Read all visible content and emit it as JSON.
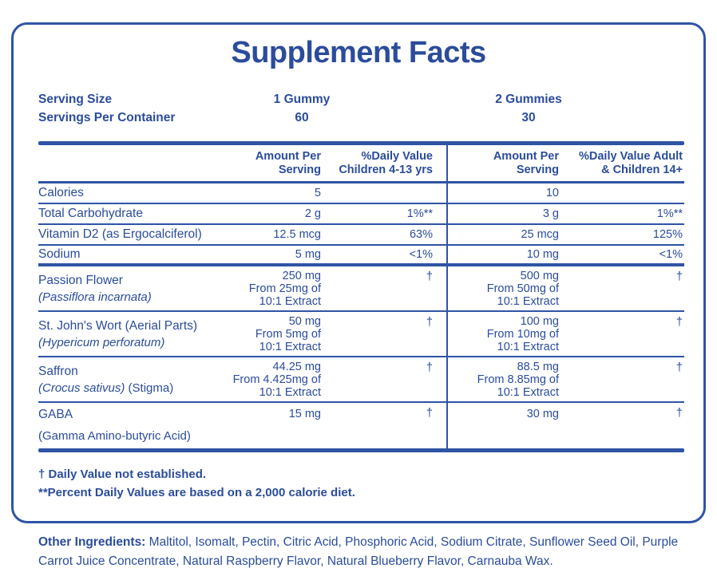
{
  "colors": {
    "brand": "#2F54A4",
    "text": "#2B4C9B"
  },
  "title": "Supplement Facts",
  "serving": {
    "size_label": "Serving Size",
    "container_label": "Servings Per Container",
    "col1": {
      "size": "1 Gummy",
      "servings": "60"
    },
    "col2": {
      "size": "2 Gummies",
      "servings": "30"
    }
  },
  "table": {
    "headers": {
      "amount1_l1": "Amount Per",
      "amount1_l2": "Serving",
      "dv1_l1": "%Daily Value",
      "dv1_l2": "Children 4-13 yrs",
      "amount2_l1": "Amount Per",
      "amount2_l2": "Serving",
      "dv2_l1": "%Daily Value Adult",
      "dv2_l2": "& Children 14+"
    },
    "rows": [
      {
        "name": "Calories",
        "amount1": [
          "5"
        ],
        "dv1": "",
        "amount2": [
          "10"
        ],
        "dv2": ""
      },
      {
        "name": "Total Carbohydrate",
        "amount1": [
          "2 g"
        ],
        "dv1": "1%**",
        "amount2": [
          "3 g"
        ],
        "dv2": "1%**"
      },
      {
        "name": "Vitamin D2 (as Ergocalciferol)",
        "amount1": [
          "12.5 mcg"
        ],
        "dv1": "63%",
        "amount2": [
          "25 mcg"
        ],
        "dv2": "125%"
      },
      {
        "name": "Sodium",
        "amount1": [
          "5 mg"
        ],
        "dv1": "<1%",
        "amount2": [
          "10 mg"
        ],
        "dv2": "<1%",
        "thick_after": true
      },
      {
        "name": "Passion Flower",
        "name2_italic": "(Passiflora incarnata)",
        "tall": true,
        "amount1": [
          "250 mg",
          "From 25mg of",
          "10:1 Extract"
        ],
        "dv1": "†",
        "amount2": [
          "500 mg",
          "From 50mg of",
          "10:1 Extract"
        ],
        "dv2": "†"
      },
      {
        "name": "St. John's Wort (Aerial Parts)",
        "name2_italic": "(Hypericum perforatum)",
        "tall": true,
        "amount1": [
          "50 mg",
          "From 5mg of",
          "10:1 Extract"
        ],
        "dv1": "†",
        "amount2": [
          "100 mg",
          "From 10mg of",
          "10:1 Extract"
        ],
        "dv2": "†"
      },
      {
        "name": "Saffron",
        "name2_italic": "(Crocus sativus)",
        "name2_normal": " (Stigma)",
        "tall": true,
        "amount1": [
          "44.25 mg",
          "From 4.425mg of",
          "10:1 Extract"
        ],
        "dv1": "†",
        "amount2": [
          "88.5 mg",
          "From 8.85mg of",
          "10:1 Extract"
        ],
        "dv2": "†"
      },
      {
        "name": "GABA",
        "name2_normal": "(Gamma Amino-butyric Acid)",
        "tall": true,
        "top": true,
        "name_gap": true,
        "amount1": [
          "15 mg"
        ],
        "dv1": "†",
        "amount2": [
          "30 mg"
        ],
        "dv2": "†"
      }
    ]
  },
  "footnotes": {
    "dagger": "† Daily Value not established.",
    "percent": "**Percent Daily Values are based on a 2,000 calorie diet."
  },
  "other_ingredients": {
    "label": "Other Ingredients:",
    "text": " Maltitol, Isomalt, Pectin, Citric Acid, Phosphoric Acid, Sodium Citrate, Sunflower Seed Oil, Purple Carrot Juice Concentrate, Natural Raspberry Flavor, Natural Blueberry Flavor, Carnauba Wax."
  }
}
